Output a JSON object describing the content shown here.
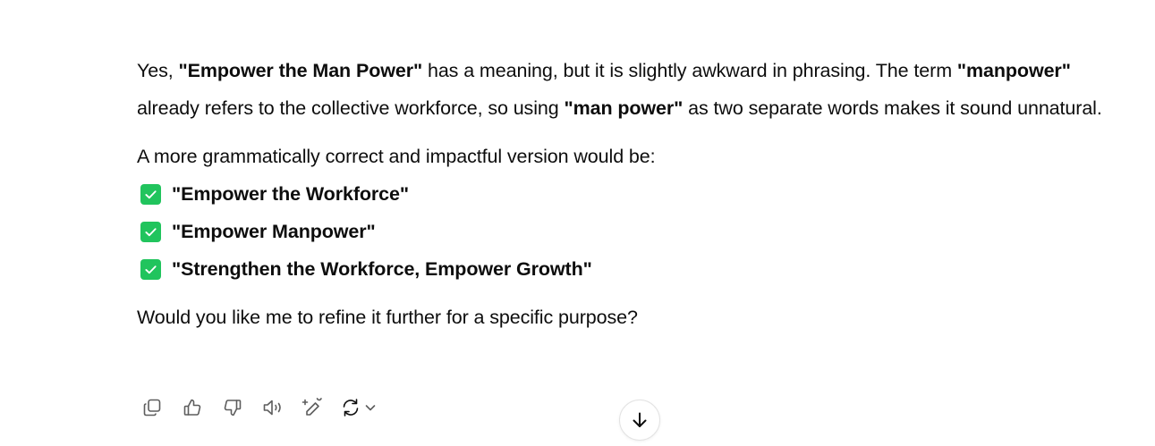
{
  "message": {
    "intro": {
      "t1": "Yes, ",
      "b1": "\"Empower the Man Power\"",
      "t2": " has a meaning, but it is slightly awkward in phrasing. The term ",
      "b2": "\"manpower\"",
      "t3": " already refers to the collective workforce, so using ",
      "b3": "\"man power\"",
      "t4": " as two separate words makes it sound unnatural."
    },
    "lead_in": "A more grammatically correct and impactful version would be:",
    "suggestions": [
      "\"Empower the Workforce\"",
      "\"Empower Manpower\"",
      "\"Strengthen the Workforce, Empower Growth\""
    ],
    "closing": "Would you like me to refine it further for a specific purpose?"
  },
  "icons": {
    "check": "check-box-icon",
    "copy": "copy-icon",
    "like": "thumbs-up-icon",
    "dislike": "thumbs-down-icon",
    "read_aloud": "speaker-icon",
    "edit": "edit-pencil-icon",
    "regenerate": "regenerate-icon",
    "scroll_down": "arrow-down-icon"
  },
  "colors": {
    "check_green": "#21c45d",
    "text": "#0d0d0d",
    "icon_gray": "#5d5d5d"
  }
}
